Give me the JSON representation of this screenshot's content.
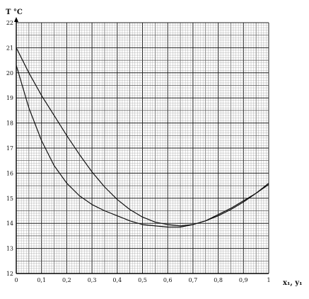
{
  "chart_data": {
    "type": "line",
    "title": "",
    "ylabel": "T °C",
    "xlabel": "x₁, y₁",
    "xlim": [
      0,
      1
    ],
    "ylim": [
      12,
      22
    ],
    "grid": "fine millimetre graph paper (major every 0.1 x / 1 °C, minor 0.01 x / 0.1 °C)",
    "x_ticks": [
      "0",
      "0,1",
      "0,2",
      "0,3",
      "0,4",
      "0,5",
      "0,6",
      "0,7",
      "0,8",
      "0,9",
      "1"
    ],
    "y_ticks": [
      "12",
      "13",
      "14",
      "15",
      "16",
      "17",
      "18",
      "19",
      "20",
      "21",
      "22"
    ],
    "series": [
      {
        "name": "",
        "x": [
          0,
          0.05,
          0.1,
          0.15,
          0.2,
          0.25,
          0.3,
          0.35,
          0.4,
          0.45,
          0.5,
          0.55,
          0.6,
          0.65,
          0.7,
          0.75,
          0.8,
          0.85,
          0.9,
          0.95,
          1.0
        ],
        "y": [
          20.3,
          18.6,
          17.3,
          16.3,
          15.6,
          15.1,
          14.75,
          14.5,
          14.3,
          14.1,
          13.95,
          13.9,
          13.85,
          13.85,
          13.95,
          14.1,
          14.35,
          14.6,
          14.9,
          15.2,
          15.55
        ]
      },
      {
        "name": "",
        "x": [
          0,
          0.05,
          0.1,
          0.15,
          0.2,
          0.25,
          0.3,
          0.35,
          0.4,
          0.45,
          0.5,
          0.55,
          0.6,
          0.65,
          0.7,
          0.75,
          0.8,
          0.85,
          0.9,
          0.95,
          1.0
        ],
        "y": [
          21.0,
          20.0,
          19.1,
          18.3,
          17.5,
          16.75,
          16.05,
          15.45,
          14.95,
          14.55,
          14.25,
          14.05,
          13.95,
          13.9,
          13.95,
          14.1,
          14.3,
          14.55,
          14.85,
          15.2,
          15.6
        ]
      }
    ]
  }
}
